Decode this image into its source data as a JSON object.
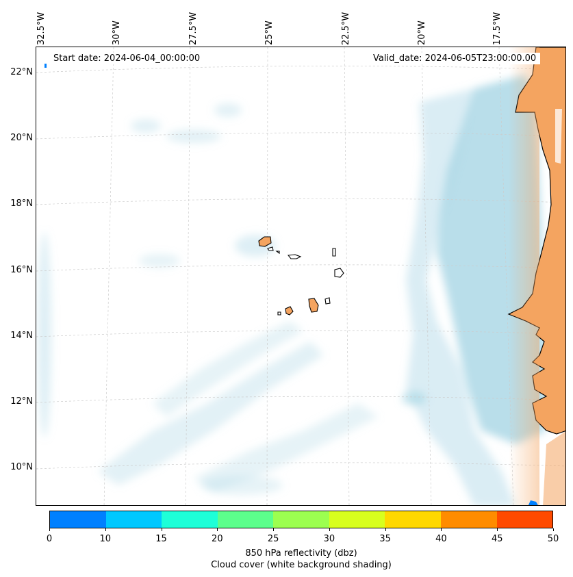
{
  "map": {
    "start_date": "Start date: 2024-06-04_00:00:00",
    "valid_date": "Valid_date: 2024-06-05T23:00:00.00",
    "lon_labels": [
      "32.5°W",
      "30°W",
      "27.5°W",
      "25°W",
      "22.5°W",
      "20°W",
      "17.5°W"
    ],
    "lat_labels": [
      "22°N",
      "20°N",
      "18°N",
      "16°N",
      "14°N",
      "12°N",
      "10°N"
    ],
    "land_color": "#f4a460",
    "cloud_color": "#add8e6",
    "gridline_color": "#cccccc"
  },
  "colorbar": {
    "ticks": [
      "0",
      "10",
      "15",
      "20",
      "25",
      "30",
      "35",
      "40",
      "45",
      "50"
    ],
    "colors": [
      "#0080ff",
      "#00c8ff",
      "#1effd8",
      "#5cff8c",
      "#9cff50",
      "#d8ff1e",
      "#ffd800",
      "#ff8c00",
      "#ff4a00"
    ],
    "title": "850 hPa reflectivity (dbz)",
    "subtitle": "Cloud cover (white background shading)"
  }
}
